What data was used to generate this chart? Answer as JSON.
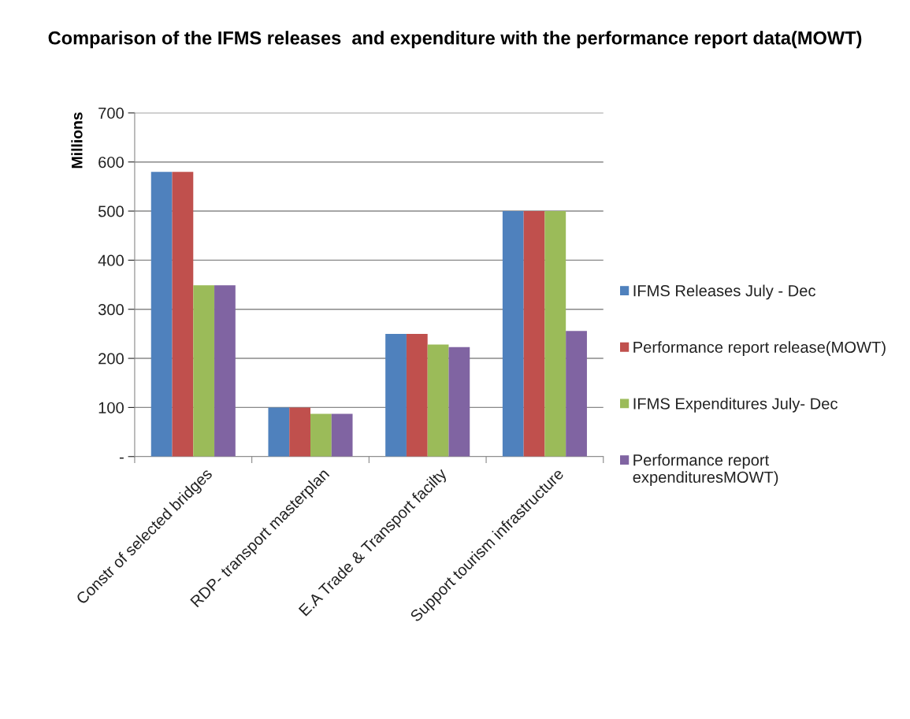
{
  "chart_data": {
    "type": "bar",
    "title": "Comparison of the IFMS releases  and expenditure with the performance report data(MOWT)",
    "ylabel": "Millions",
    "categories": [
      "Constr of selected bridges",
      "RDP- transport masterplan",
      "E.A Trade & Transport facilty",
      "Support tourism infrastructure"
    ],
    "series": [
      {
        "name": "IFMS Releases July - Dec",
        "color": "#4f81bd",
        "values": [
          580,
          100,
          250,
          500
        ]
      },
      {
        "name": "Performance report release(MOWT)",
        "color": "#c0504d",
        "values": [
          580,
          100,
          250,
          500
        ]
      },
      {
        "name": "IFMS Expenditures July- Dec",
        "color": "#9bbb59",
        "values": [
          349,
          87,
          228,
          500
        ]
      },
      {
        "name": "Performance report expendituresMOWT)",
        "color": "#8064a2",
        "values": [
          349,
          87,
          223,
          256
        ]
      }
    ],
    "ylim": [
      0,
      700
    ],
    "yticks": [
      {
        "value": 0,
        "label": "-"
      },
      100,
      200,
      300,
      400,
      500,
      600,
      700
    ],
    "grid": "y",
    "legend": "right"
  }
}
